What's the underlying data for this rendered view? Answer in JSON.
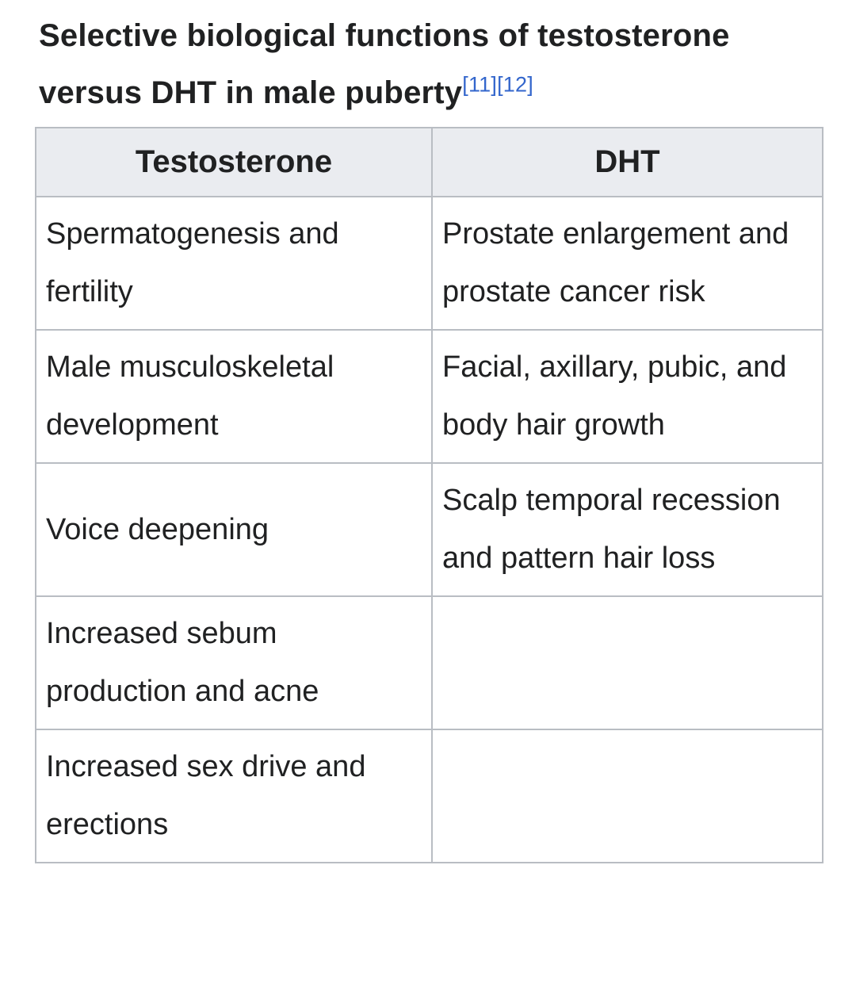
{
  "title": {
    "text": "Selective biological functions of testosterone versus DHT in male puberty",
    "references": [
      "[11]",
      "[12]"
    ]
  },
  "table": {
    "headers": [
      "Testosterone",
      "DHT"
    ],
    "rows": [
      {
        "testosterone": "Spermatogenesis and fertility",
        "dht": "Prostate enlargement and prostate cancer risk"
      },
      {
        "testosterone": "Male musculoskeletal development",
        "dht": "Facial, axillary, pubic, and body hair growth"
      },
      {
        "testosterone": "Voice deepening",
        "dht": "Scalp temporal recession and pattern hair loss"
      },
      {
        "testosterone": "Increased sebum production and acne",
        "dht": ""
      },
      {
        "testosterone": "Increased sex drive and erections",
        "dht": ""
      }
    ]
  },
  "colors": {
    "header_background": "#eaecf0",
    "border": "#b9bdc3",
    "text": "#202122",
    "link": "#3366cc"
  }
}
